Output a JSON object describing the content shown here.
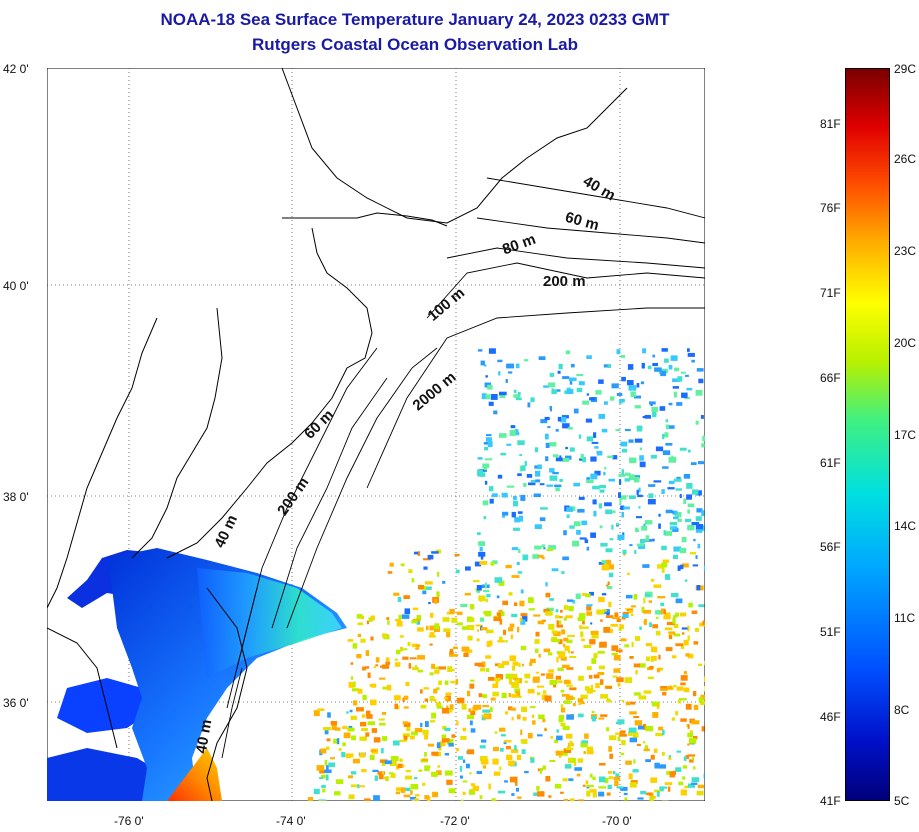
{
  "title": {
    "line1": "NOAA-18 Sea Surface Temperature January 24, 2023 0233 GMT",
    "line2": "Rutgers Coastal Ocean Observation Lab"
  },
  "axes": {
    "lat_labels": [
      {
        "text": "42 0'",
        "lat": 42
      },
      {
        "text": "40 0'",
        "lat": 40
      },
      {
        "text": "38 0'",
        "lat": 38
      },
      {
        "text": "36 0'",
        "lat": 36
      }
    ],
    "lon_labels": [
      {
        "text": "-76 0'",
        "lon": -76
      },
      {
        "text": "-74 0'",
        "lon": -74
      },
      {
        "text": "-72 0'",
        "lon": -72
      },
      {
        "text": "-70 0'",
        "lon": -70
      }
    ],
    "lat_range": [
      35,
      42
    ],
    "lon_range": [
      -77,
      -69
    ],
    "grid": "dotted"
  },
  "isobath_labels": [
    "40 m",
    "60 m",
    "80 m",
    "200 m",
    "100 m",
    "2000 m",
    "60 m",
    "200 m",
    "40 m",
    "40 m"
  ],
  "colorbar": {
    "fahrenheit": [
      "81F",
      "76F",
      "71F",
      "66F",
      "61F",
      "56F",
      "51F",
      "46F",
      "41F"
    ],
    "celsius": [
      "29C",
      "26C",
      "23C",
      "20C",
      "17C",
      "14C",
      "11C",
      "8C",
      "5C"
    ],
    "colors": [
      "#00007a",
      "#0050ff",
      "#00e0e0",
      "#b8f000",
      "#ffff00",
      "#ff5000",
      "#7a0000"
    ]
  },
  "colors": {
    "title": "#1a1aa6",
    "land": "#ffffff",
    "coastline": "#000000"
  }
}
